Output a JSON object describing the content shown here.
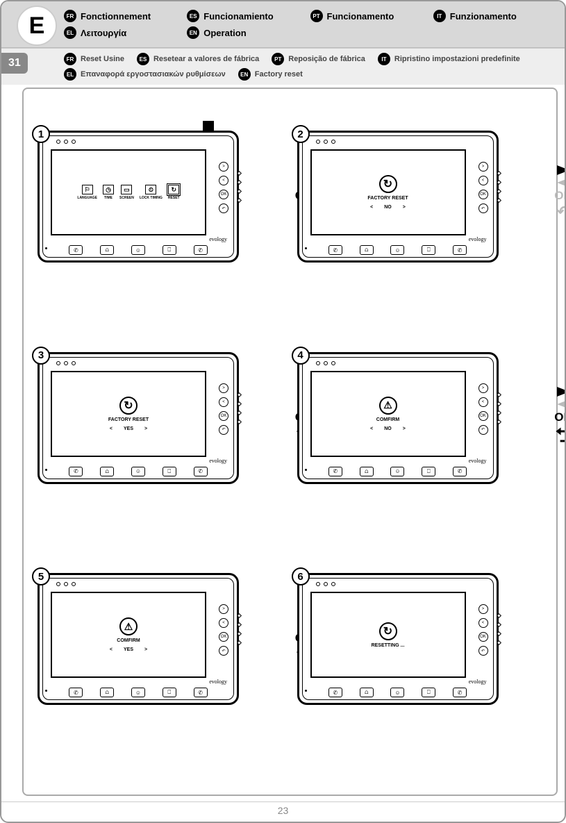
{
  "section_letter": "E",
  "step_number": "31",
  "page_number": "23",
  "brand": "evology",
  "header_langs": [
    {
      "code": "FR",
      "label": "Fonctionnement"
    },
    {
      "code": "ES",
      "label": "Funcionamiento"
    },
    {
      "code": "PT",
      "label": "Funcionamento"
    },
    {
      "code": "IT",
      "label": "Funzionamento"
    },
    {
      "code": "EL",
      "label": "Λειτουργία"
    },
    {
      "code": "EN",
      "label": "Operation"
    }
  ],
  "sub_langs": [
    {
      "code": "FR",
      "label": "Reset Usine"
    },
    {
      "code": "ES",
      "label": "Resetear a valores de fábrica"
    },
    {
      "code": "PT",
      "label": "Reposição de fábrica"
    },
    {
      "code": "IT",
      "label": "Ripristino impostazioni predefinite"
    },
    {
      "code": "EL",
      "label": "Επαναφορά εργοστασιακών ρυθμίσεων"
    },
    {
      "code": "EN",
      "label": "Factory reset"
    }
  ],
  "menu_items": [
    "LANGUAGE",
    "TIME",
    "SCREEN",
    "LOCK TIMING",
    "RESET"
  ],
  "side_buttons": [
    ">",
    "<",
    "OK",
    "↶"
  ],
  "ok_label": "OK",
  "panels": {
    "1": {
      "num": "1"
    },
    "2": {
      "num": "2",
      "title": "FACTORY RESET",
      "choice": "NO"
    },
    "3": {
      "num": "3",
      "title": "FACTORY RESET",
      "choice": "YES"
    },
    "4": {
      "num": "4",
      "title": "COMFIRM",
      "choice": "NO"
    },
    "5": {
      "num": "5",
      "title": "COMFIRM",
      "choice": "YES"
    },
    "6": {
      "num": "6",
      "title": "RESETTING ..."
    }
  },
  "nav_labels": {
    "left": "<",
    "right": ">"
  },
  "colors": {
    "header_bg": "#d8d8d8",
    "sub_bg": "#eeeeee",
    "grey_arrow": "#bbbbbb",
    "border": "#000000"
  }
}
